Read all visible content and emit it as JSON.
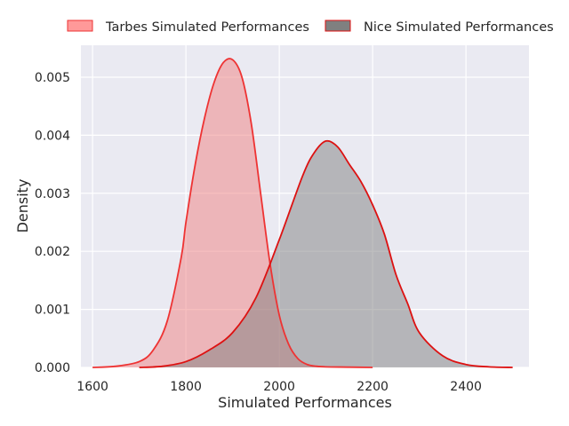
{
  "chart_data": {
    "type": "area",
    "subtype": "kde-density",
    "title": "",
    "xlabel": "Simulated Performances",
    "ylabel": "Density",
    "xlim": [
      1575,
      2535
    ],
    "ylim": [
      0,
      0.00555
    ],
    "x_ticks": [
      1600,
      1800,
      2000,
      2200,
      2400
    ],
    "x_tick_labels": [
      "1600",
      "1800",
      "2000",
      "2200",
      "2400"
    ],
    "y_ticks": [
      0,
      0.001,
      0.002,
      0.003,
      0.004,
      0.005
    ],
    "y_tick_labels": [
      "0.000",
      "0.001",
      "0.002",
      "0.003",
      "0.004",
      "0.005"
    ],
    "grid": true,
    "background": "#eaeaf2",
    "legend": {
      "placement": "top-center",
      "entries": [
        "Tarbes Simulated Performances",
        "Nice Simulated Performances"
      ]
    },
    "series": [
      {
        "name": "Tarbes Simulated Performances",
        "fill_color": "#f08080",
        "line_color": "#ee3333",
        "legend_fill": "#ff9999",
        "x": [
          1600,
          1650,
          1700,
          1730,
          1760,
          1790,
          1800,
          1820,
          1840,
          1860,
          1880,
          1900,
          1920,
          1940,
          1960,
          1980,
          2000,
          2020,
          2040,
          2060,
          2080,
          2100,
          2150,
          2200
        ],
        "y": [
          0,
          2e-05,
          0.0001,
          0.0003,
          0.0008,
          0.0019,
          0.0025,
          0.0035,
          0.0043,
          0.0049,
          0.00525,
          0.0053,
          0.005,
          0.0042,
          0.003,
          0.0018,
          0.0009,
          0.0004,
          0.00015,
          5e-05,
          2e-05,
          1e-05,
          5e-06,
          0
        ]
      },
      {
        "name": "Nice Simulated Performances",
        "fill_color": "#808080",
        "line_color": "#dd1111",
        "legend_fill": "#808080",
        "x": [
          1700,
          1750,
          1800,
          1850,
          1900,
          1950,
          2000,
          2050,
          2075,
          2100,
          2125,
          2150,
          2175,
          2200,
          2225,
          2250,
          2275,
          2300,
          2350,
          2400,
          2450,
          2500
        ],
        "y": [
          0,
          2e-05,
          0.0001,
          0.0003,
          0.0006,
          0.0012,
          0.0022,
          0.0033,
          0.0037,
          0.0039,
          0.0038,
          0.0035,
          0.0032,
          0.0028,
          0.0023,
          0.0016,
          0.0011,
          0.0006,
          0.0002,
          5e-05,
          1e-05,
          0
        ]
      }
    ]
  }
}
